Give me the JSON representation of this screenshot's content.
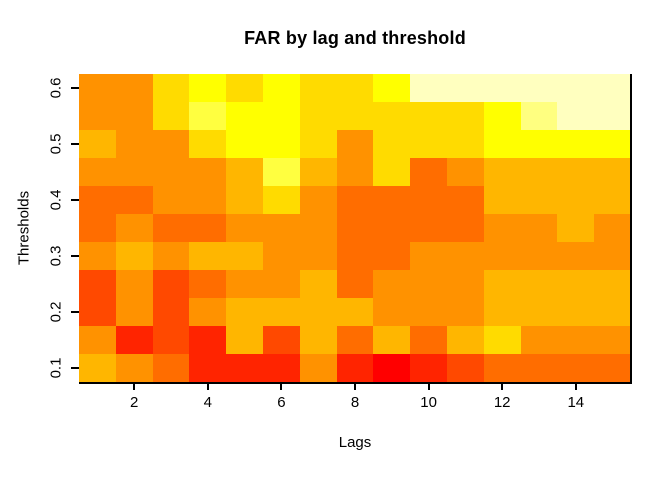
{
  "chart_data": {
    "type": "heatmap",
    "title": "FAR by lag and threshold",
    "xlabel": "Lags",
    "ylabel": "Thresholds",
    "x_categories": [
      1,
      2,
      3,
      4,
      5,
      6,
      7,
      8,
      9,
      10,
      11,
      12,
      13,
      14,
      15
    ],
    "x_tick_labels": [
      "2",
      "4",
      "6",
      "8",
      "10",
      "12",
      "14"
    ],
    "x_tick_values": [
      2,
      4,
      6,
      8,
      10,
      12,
      14
    ],
    "x_axis_range": [
      0.5,
      15.5
    ],
    "y_tick_labels": [
      "0.1",
      "0.2",
      "0.3",
      "0.4",
      "0.5",
      "0.6"
    ],
    "y_tick_values": [
      0.1,
      0.2,
      0.3,
      0.4,
      0.5,
      0.6
    ],
    "y_axis_range": [
      0.075,
      0.625
    ],
    "grid_on": false,
    "legend": "none (FAR values encoded only as heat colors, no colorbar shown)",
    "palette_heat_colors": [
      "#FF0000",
      "#FF2400",
      "#FF4900",
      "#FF6D00",
      "#FF9200",
      "#FFB600",
      "#FFDB00",
      "#FFFF00",
      "#FFFF40",
      "#FFFF80",
      "#FFFFBF",
      "#FFFFFF"
    ],
    "rows_top_to_bottom_thresholds": [
      0.6,
      0.55,
      0.5,
      0.45,
      0.4,
      0.35,
      0.3,
      0.25,
      0.2,
      0.15,
      0.1
    ],
    "cell_colors_by_row_top_to_bottom": [
      [
        "#FF9200",
        "#FF9200",
        "#FFDB00",
        "#FFFF00",
        "#FFDB00",
        "#FFFF00",
        "#FFDB00",
        "#FFDB00",
        "#FFFF00",
        "#FFFFBF",
        "#FFFFBF",
        "#FFFFBF",
        "#FFFFBF",
        "#FFFFBF",
        "#FFFFBF"
      ],
      [
        "#FF9200",
        "#FF9200",
        "#FFDB00",
        "#FFFF40",
        "#FFFF00",
        "#FFFF00",
        "#FFDB00",
        "#FFDB00",
        "#FFDB00",
        "#FFDB00",
        "#FFDB00",
        "#FFFF00",
        "#FFFF80",
        "#FFFFBF",
        "#FFFFBF"
      ],
      [
        "#FFB600",
        "#FF9200",
        "#FF9200",
        "#FFDB00",
        "#FFFF00",
        "#FFFF00",
        "#FFDB00",
        "#FF9200",
        "#FFDB00",
        "#FFDB00",
        "#FFDB00",
        "#FFFF00",
        "#FFFF00",
        "#FFFF00",
        "#FFFF00"
      ],
      [
        "#FF9200",
        "#FF9200",
        "#FF9200",
        "#FF9200",
        "#FFB600",
        "#FFFF40",
        "#FFB600",
        "#FF9200",
        "#FFDB00",
        "#FF6D00",
        "#FF9200",
        "#FFB600",
        "#FFB600",
        "#FFB600",
        "#FFB600"
      ],
      [
        "#FF6D00",
        "#FF6D00",
        "#FF9200",
        "#FF9200",
        "#FFB600",
        "#FFDB00",
        "#FF9200",
        "#FF6D00",
        "#FF6D00",
        "#FF6D00",
        "#FF6D00",
        "#FFB600",
        "#FFB600",
        "#FFB600",
        "#FFB600"
      ],
      [
        "#FF6D00",
        "#FF9200",
        "#FF6D00",
        "#FF6D00",
        "#FF9200",
        "#FF9200",
        "#FF9200",
        "#FF6D00",
        "#FF6D00",
        "#FF6D00",
        "#FF6D00",
        "#FF9200",
        "#FF9200",
        "#FFB600",
        "#FF9200"
      ],
      [
        "#FF9200",
        "#FFB600",
        "#FF9200",
        "#FFB600",
        "#FFB600",
        "#FF9200",
        "#FF9200",
        "#FF6D00",
        "#FF6D00",
        "#FF9200",
        "#FF9200",
        "#FF9200",
        "#FF9200",
        "#FF9200",
        "#FF9200"
      ],
      [
        "#FF4900",
        "#FF9200",
        "#FF4900",
        "#FF6D00",
        "#FF9200",
        "#FF9200",
        "#FFB600",
        "#FF6D00",
        "#FF9200",
        "#FF9200",
        "#FF9200",
        "#FFB600",
        "#FFB600",
        "#FFB600",
        "#FFB600"
      ],
      [
        "#FF4900",
        "#FF9200",
        "#FF4900",
        "#FF9200",
        "#FFB600",
        "#FFB600",
        "#FFB600",
        "#FFB600",
        "#FF9200",
        "#FF9200",
        "#FF9200",
        "#FFB600",
        "#FFB600",
        "#FFB600",
        "#FFB600"
      ],
      [
        "#FF9200",
        "#FF2400",
        "#FF4900",
        "#FF2400",
        "#FFB600",
        "#FF4900",
        "#FFB600",
        "#FF6D00",
        "#FFB600",
        "#FF6D00",
        "#FFB600",
        "#FFDB00",
        "#FF9200",
        "#FF9200",
        "#FF9200"
      ],
      [
        "#FFB600",
        "#FF9200",
        "#FF6D00",
        "#FF2400",
        "#FF2400",
        "#FF2400",
        "#FF9200",
        "#FF2400",
        "#FF0000",
        "#FF2400",
        "#FF4900",
        "#FF6D00",
        "#FF6D00",
        "#FF6D00",
        "#FF6D00"
      ]
    ],
    "axis_color": "#000000",
    "background_color": "#ffffff"
  }
}
